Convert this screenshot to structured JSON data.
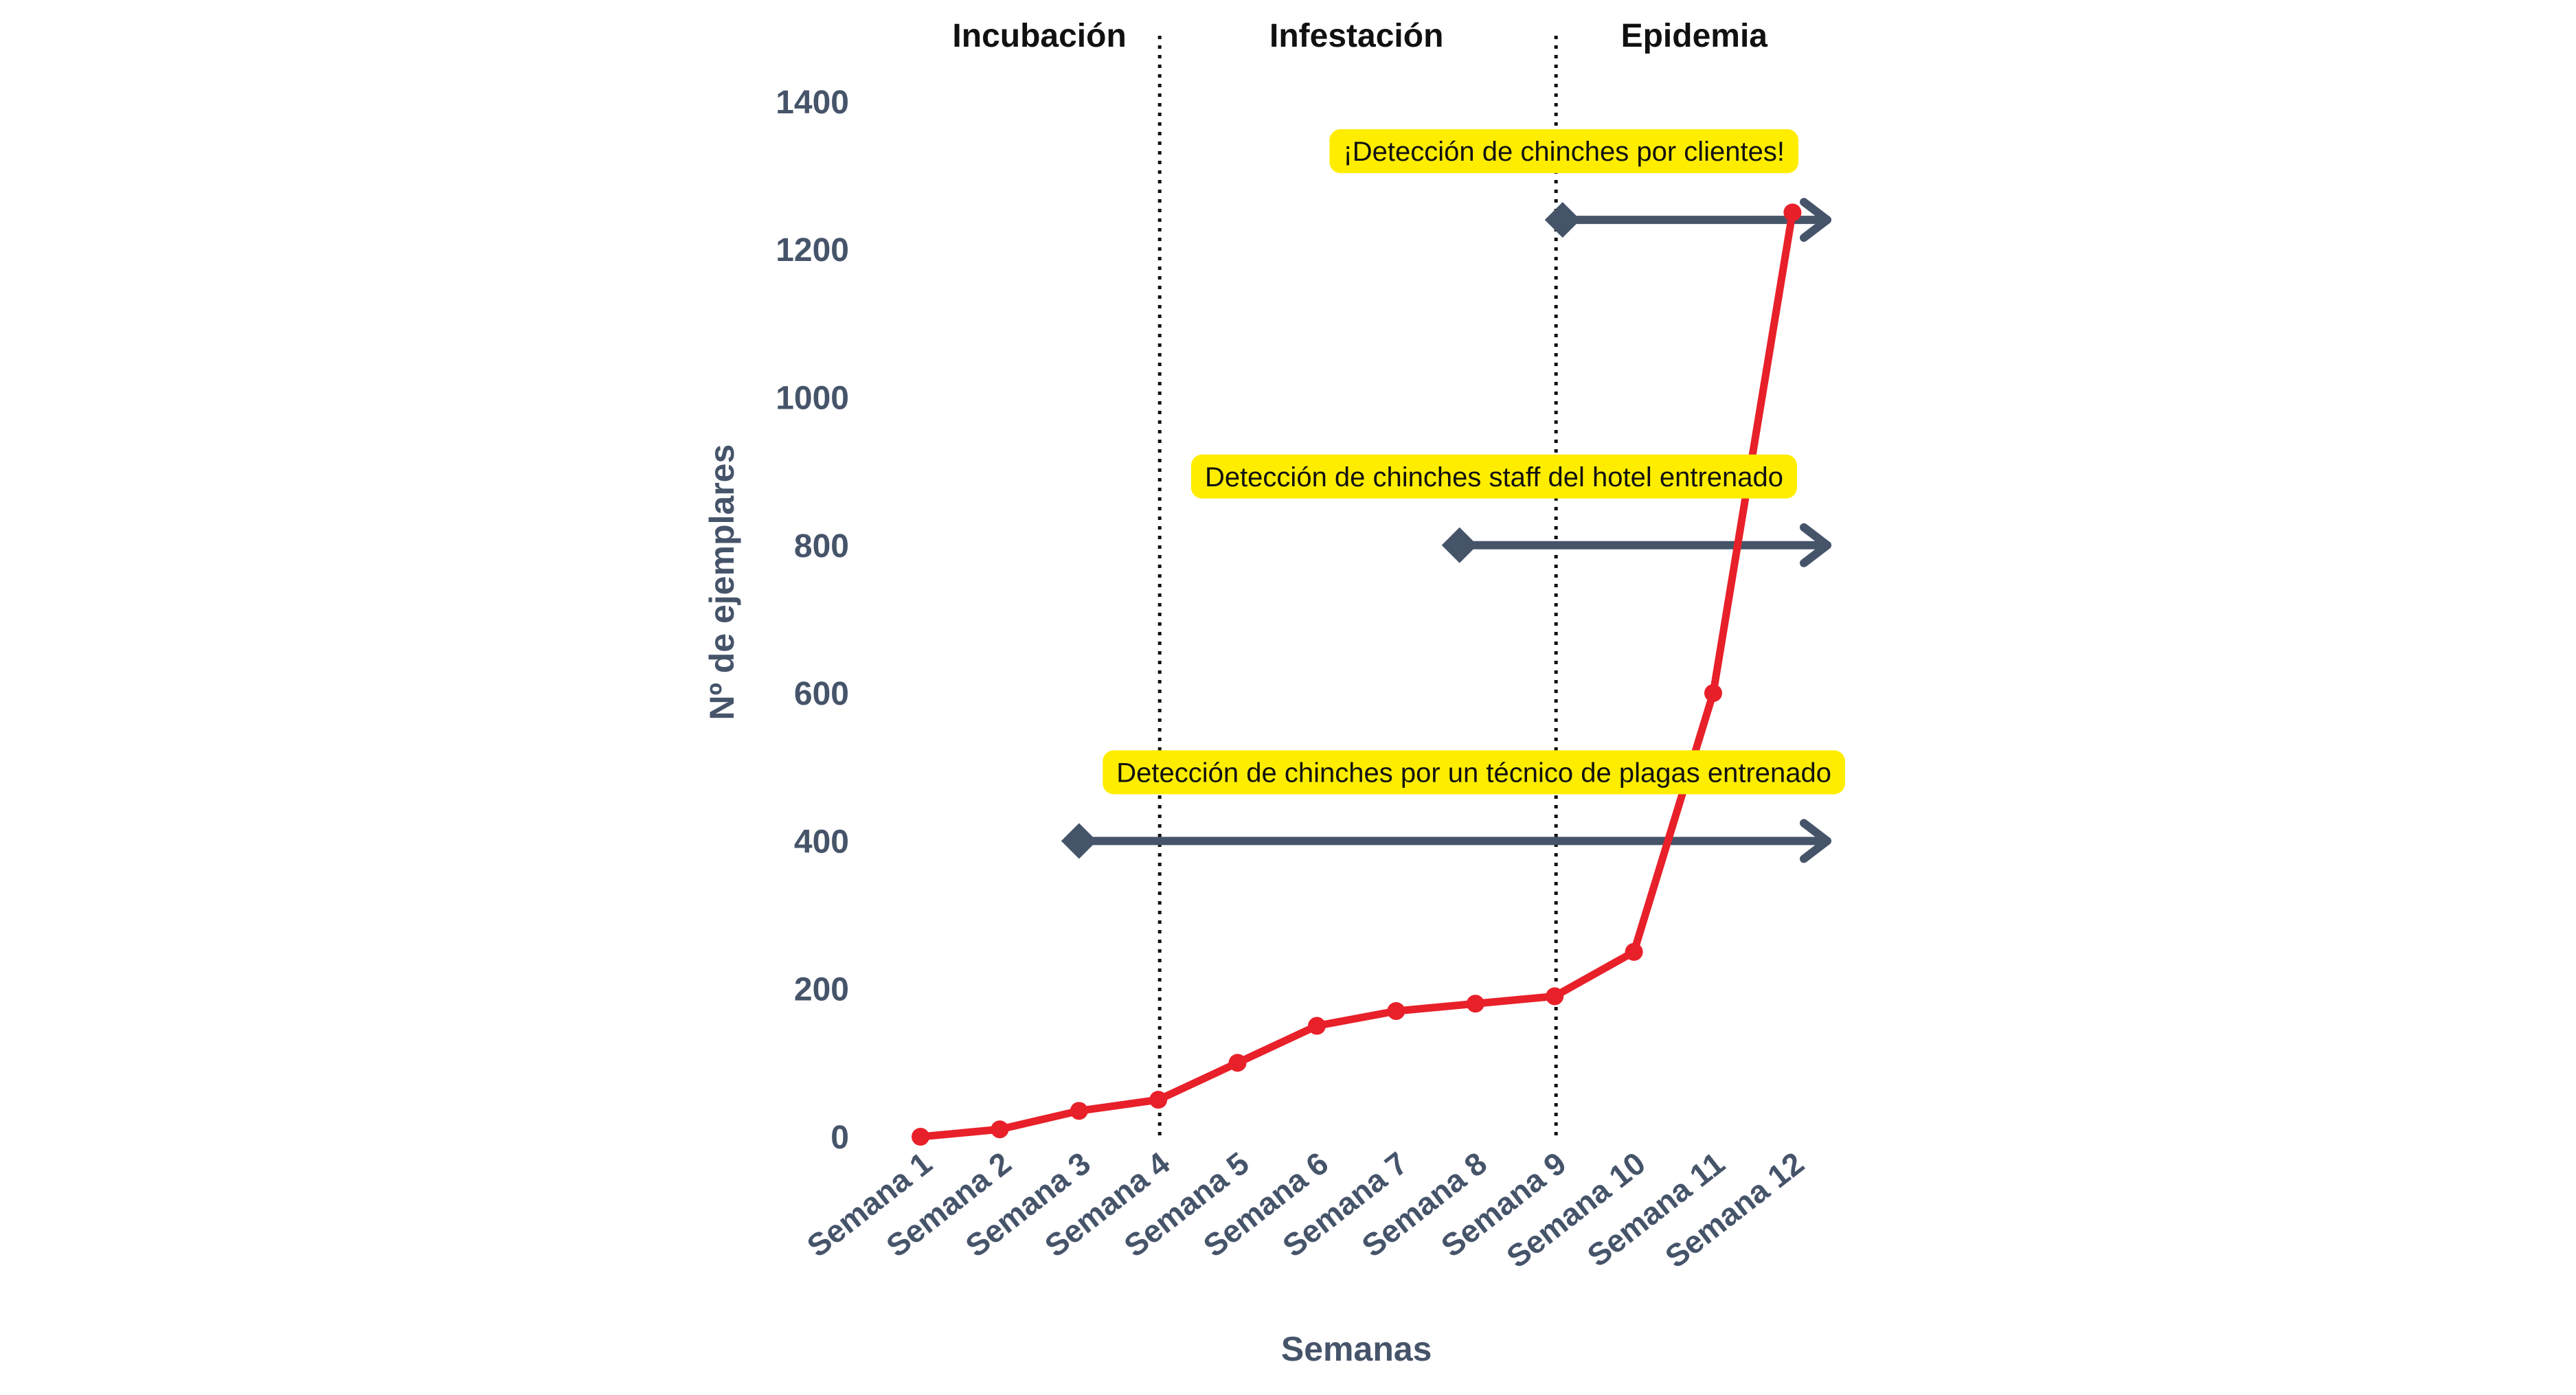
{
  "chart_data": {
    "type": "line",
    "title": "",
    "xlabel": "Semanas",
    "ylabel": "Nº de ejemplares",
    "categories": [
      "Semana 1",
      "Semana 2",
      "Semana 3",
      "Semana 4",
      "Semana 5",
      "Semana 6",
      "Semana 7",
      "Semana 8",
      "Semana 9",
      "Semana 10",
      "Semana 11",
      "Semana 12"
    ],
    "series": [
      {
        "values": [
          0,
          10,
          35,
          50,
          100,
          150,
          170,
          180,
          190,
          250,
          600,
          1250
        ]
      }
    ],
    "ylim": [
      0,
      1400
    ],
    "yticks": [
      "0",
      "200",
      "400",
      "600",
      "800",
      "1000",
      "1200",
      "1400"
    ],
    "grid": false,
    "phases": [
      {
        "label": "Incubación",
        "from": "Semana 1",
        "to": "Semana 4"
      },
      {
        "label": "Infestación",
        "from": "Semana 4",
        "to": "Semana 9"
      },
      {
        "label": "Epidemia",
        "from": "Semana 9",
        "to": "Semana 12"
      }
    ],
    "phase_dividers_after": [
      "Semana 4",
      "Semana 9"
    ],
    "annotations": [
      {
        "text": "Detección de chinches por un técnico de plagas entrenado",
        "start_week": 3,
        "y": 400
      },
      {
        "text": "Detección de chinches staff del hotel entrenado",
        "start_week": 7.8,
        "y": 800
      },
      {
        "text": "¡Detección de chinches por clientes!",
        "start_week": 9.1,
        "y": 1240
      }
    ],
    "colors": {
      "line": "#e8202a",
      "axis_text": "#46546a",
      "arrow": "#46546a",
      "callout_bg": "#ffed00",
      "phase_text": "#111111"
    }
  }
}
